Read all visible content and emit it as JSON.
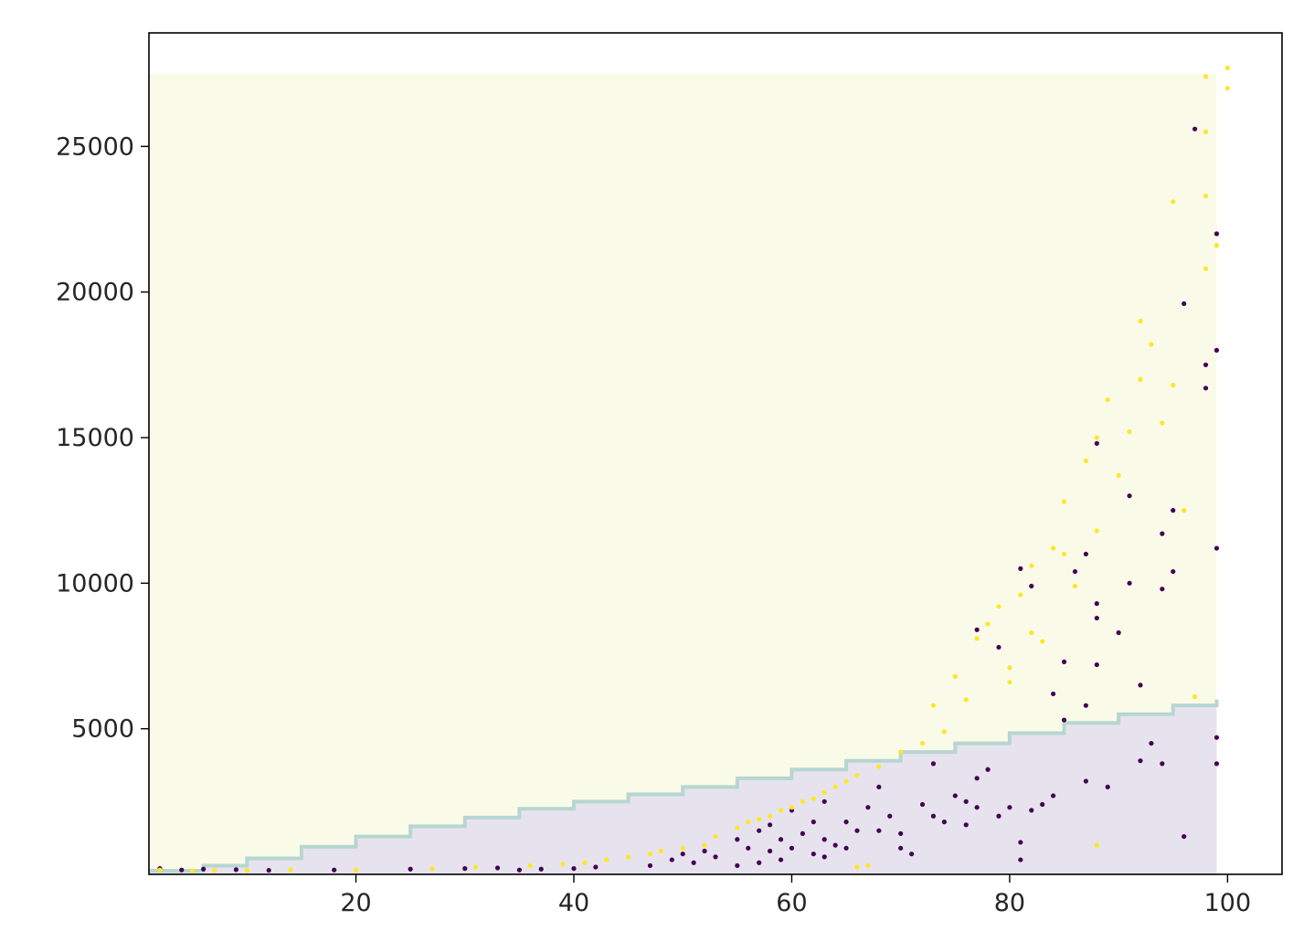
{
  "chart_data": {
    "type": "scatter",
    "title": "",
    "xlabel": "",
    "ylabel": "",
    "xlim": [
      1,
      105
    ],
    "ylim": [
      0,
      28900
    ],
    "x_ticks": [
      20,
      40,
      60,
      80,
      100
    ],
    "y_ticks": [
      5000,
      10000,
      15000,
      20000,
      25000
    ],
    "x_tick_labels": [
      "20",
      "40",
      "60",
      "80",
      "100"
    ],
    "y_tick_labels": [
      "5000",
      "10000",
      "15000",
      "20000",
      "25000"
    ],
    "grid": false,
    "legend": "none",
    "colors": {
      "class_0": "#440154",
      "class_1": "#fde725",
      "region_0": "#e7e3ee",
      "region_1": "#f9fbe8",
      "boundary": "#b7d6d0",
      "axis": "#000000"
    },
    "decision_region": {
      "x_range": [
        1,
        99
      ],
      "y_top": 27500,
      "boundary": [
        [
          1,
          120
        ],
        [
          6,
          300
        ],
        [
          10,
          550
        ],
        [
          15,
          950
        ],
        [
          20,
          1300
        ],
        [
          25,
          1650
        ],
        [
          30,
          1950
        ],
        [
          35,
          2250
        ],
        [
          40,
          2500
        ],
        [
          45,
          2750
        ],
        [
          50,
          3000
        ],
        [
          55,
          3300
        ],
        [
          60,
          3600
        ],
        [
          65,
          3900
        ],
        [
          70,
          4200
        ],
        [
          75,
          4500
        ],
        [
          80,
          4850
        ],
        [
          85,
          5200
        ],
        [
          90,
          5500
        ],
        [
          95,
          5800
        ],
        [
          99,
          6000
        ]
      ]
    },
    "series": [
      {
        "class": 0,
        "points": [
          [
            2,
            200
          ],
          [
            4,
            150
          ],
          [
            6,
            180
          ],
          [
            9,
            160
          ],
          [
            12,
            140
          ],
          [
            18,
            150
          ],
          [
            25,
            180
          ],
          [
            30,
            200
          ],
          [
            33,
            220
          ],
          [
            35,
            150
          ],
          [
            37,
            180
          ],
          [
            40,
            200
          ],
          [
            42,
            250
          ],
          [
            47,
            300
          ],
          [
            49,
            500
          ],
          [
            50,
            700
          ],
          [
            51,
            400
          ],
          [
            52,
            800
          ],
          [
            53,
            600
          ],
          [
            55,
            300
          ],
          [
            55,
            1200
          ],
          [
            56,
            900
          ],
          [
            57,
            400
          ],
          [
            57,
            1500
          ],
          [
            58,
            800
          ],
          [
            58,
            1700
          ],
          [
            59,
            1200
          ],
          [
            59,
            500
          ],
          [
            60,
            2200
          ],
          [
            60,
            900
          ],
          [
            61,
            1400
          ],
          [
            62,
            700
          ],
          [
            62,
            1800
          ],
          [
            63,
            1200
          ],
          [
            63,
            600
          ],
          [
            63,
            2500
          ],
          [
            64,
            1000
          ],
          [
            65,
            1800
          ],
          [
            65,
            900
          ],
          [
            66,
            1500
          ],
          [
            67,
            2300
          ],
          [
            68,
            3000
          ],
          [
            68,
            1500
          ],
          [
            69,
            2000
          ],
          [
            70,
            1400
          ],
          [
            70,
            900
          ],
          [
            71,
            700
          ],
          [
            72,
            2400
          ],
          [
            73,
            3800
          ],
          [
            73,
            2000
          ],
          [
            74,
            1800
          ],
          [
            75,
            2700
          ],
          [
            76,
            2500
          ],
          [
            76,
            1700
          ],
          [
            77,
            8400
          ],
          [
            77,
            2300
          ],
          [
            77,
            3300
          ],
          [
            78,
            3600
          ],
          [
            79,
            2000
          ],
          [
            79,
            7800
          ],
          [
            80,
            2300
          ],
          [
            81,
            500
          ],
          [
            81,
            1100
          ],
          [
            81,
            10500
          ],
          [
            82,
            2200
          ],
          [
            82,
            9900
          ],
          [
            83,
            2400
          ],
          [
            84,
            6200
          ],
          [
            84,
            2700
          ],
          [
            85,
            5300
          ],
          [
            85,
            7300
          ],
          [
            86,
            10400
          ],
          [
            87,
            11000
          ],
          [
            87,
            3200
          ],
          [
            87,
            5800
          ],
          [
            88,
            14800
          ],
          [
            88,
            9300
          ],
          [
            88,
            8800
          ],
          [
            88,
            7200
          ],
          [
            89,
            3000
          ],
          [
            90,
            8300
          ],
          [
            91,
            13000
          ],
          [
            91,
            10000
          ],
          [
            92,
            6500
          ],
          [
            92,
            3900
          ],
          [
            93,
            4500
          ],
          [
            94,
            11700
          ],
          [
            94,
            9800
          ],
          [
            94,
            3800
          ],
          [
            95,
            12500
          ],
          [
            95,
            10400
          ],
          [
            96,
            19600
          ],
          [
            96,
            1300
          ],
          [
            97,
            25600
          ],
          [
            98,
            17500
          ],
          [
            98,
            16700
          ],
          [
            99,
            22000
          ],
          [
            99,
            18000
          ],
          [
            99,
            11200
          ],
          [
            99,
            4700
          ],
          [
            99,
            3800
          ]
        ]
      },
      {
        "class": 1,
        "points": [
          [
            2,
            150
          ],
          [
            5,
            120
          ],
          [
            7,
            140
          ],
          [
            10,
            130
          ],
          [
            14,
            160
          ],
          [
            20,
            150
          ],
          [
            27,
            200
          ],
          [
            31,
            250
          ],
          [
            36,
            300
          ],
          [
            39,
            350
          ],
          [
            41,
            400
          ],
          [
            43,
            500
          ],
          [
            45,
            600
          ],
          [
            47,
            700
          ],
          [
            48,
            800
          ],
          [
            50,
            900
          ],
          [
            52,
            1000
          ],
          [
            53,
            1300
          ],
          [
            55,
            1600
          ],
          [
            56,
            1800
          ],
          [
            57,
            1900
          ],
          [
            58,
            2000
          ],
          [
            59,
            2200
          ],
          [
            60,
            2300
          ],
          [
            61,
            2500
          ],
          [
            62,
            2600
          ],
          [
            63,
            2800
          ],
          [
            64,
            3000
          ],
          [
            65,
            3200
          ],
          [
            66,
            3400
          ],
          [
            68,
            3700
          ],
          [
            70,
            4200
          ],
          [
            72,
            4500
          ],
          [
            73,
            5800
          ],
          [
            74,
            4900
          ],
          [
            75,
            6800
          ],
          [
            76,
            6000
          ],
          [
            77,
            8100
          ],
          [
            78,
            8600
          ],
          [
            79,
            9200
          ],
          [
            80,
            7100
          ],
          [
            80,
            6600
          ],
          [
            81,
            9600
          ],
          [
            82,
            8300
          ],
          [
            82,
            10600
          ],
          [
            83,
            8000
          ],
          [
            84,
            11200
          ],
          [
            85,
            12800
          ],
          [
            85,
            11000
          ],
          [
            86,
            9900
          ],
          [
            87,
            14200
          ],
          [
            88,
            11800
          ],
          [
            88,
            15000
          ],
          [
            89,
            16300
          ],
          [
            90,
            13700
          ],
          [
            91,
            15200
          ],
          [
            92,
            17000
          ],
          [
            92,
            19000
          ],
          [
            93,
            18200
          ],
          [
            94,
            15500
          ],
          [
            95,
            23100
          ],
          [
            95,
            16800
          ],
          [
            96,
            12500
          ],
          [
            97,
            6100
          ],
          [
            98,
            23300
          ],
          [
            98,
            20800
          ],
          [
            98,
            25500
          ],
          [
            98,
            27400
          ],
          [
            99,
            21600
          ],
          [
            100,
            27700
          ],
          [
            100,
            27000
          ],
          [
            67,
            300
          ],
          [
            66,
            250
          ],
          [
            88,
            1000
          ]
        ]
      }
    ]
  }
}
